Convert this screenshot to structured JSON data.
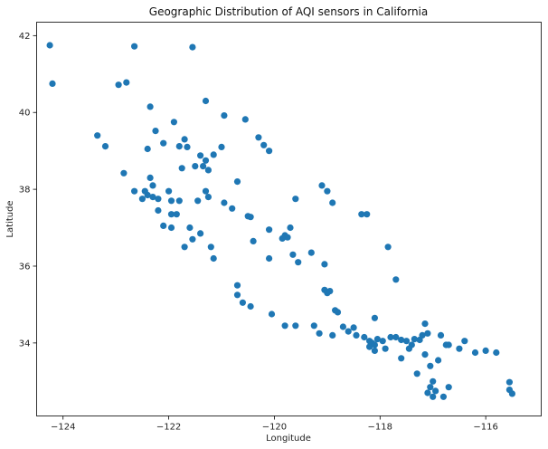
{
  "chart_data": {
    "type": "scatter",
    "title": "Geographic Distribution of AQI sensors in California",
    "xlabel": "Longitude",
    "ylabel": "Latitude",
    "xlim": [
      -124.5,
      -114.95
    ],
    "ylim": [
      32.1,
      42.35
    ],
    "xticks": [
      -124,
      -122,
      -120,
      -118,
      -116
    ],
    "yticks": [
      34,
      36,
      38,
      40,
      42
    ],
    "grid": false,
    "point_color": "#1f77b4",
    "points": [
      [
        -124.25,
        41.75
      ],
      [
        -124.2,
        40.75
      ],
      [
        -122.65,
        41.72
      ],
      [
        -121.55,
        41.7
      ],
      [
        -122.95,
        40.72
      ],
      [
        -122.8,
        40.78
      ],
      [
        -121.3,
        40.3
      ],
      [
        -122.35,
        40.15
      ],
      [
        -120.95,
        39.92
      ],
      [
        -120.55,
        39.82
      ],
      [
        -122.25,
        39.52
      ],
      [
        -121.9,
        39.75
      ],
      [
        -123.35,
        39.4
      ],
      [
        -123.2,
        39.12
      ],
      [
        -121.8,
        39.12
      ],
      [
        -122.1,
        39.2
      ],
      [
        -121.7,
        39.3
      ],
      [
        -122.4,
        39.05
      ],
      [
        -121.65,
        39.1
      ],
      [
        -121.4,
        38.88
      ],
      [
        -121.3,
        38.75
      ],
      [
        -121.15,
        38.9
      ],
      [
        -121.0,
        39.1
      ],
      [
        -120.3,
        39.35
      ],
      [
        -120.2,
        39.15
      ],
      [
        -120.1,
        39.0
      ],
      [
        -122.85,
        38.42
      ],
      [
        -122.35,
        38.3
      ],
      [
        -121.75,
        38.55
      ],
      [
        -121.5,
        38.6
      ],
      [
        -121.35,
        38.6
      ],
      [
        -121.25,
        38.5
      ],
      [
        -120.7,
        38.2
      ],
      [
        -122.3,
        38.1
      ],
      [
        -122.65,
        37.95
      ],
      [
        -122.45,
        37.95
      ],
      [
        -122.4,
        37.85
      ],
      [
        -122.3,
        37.8
      ],
      [
        -122.2,
        37.75
      ],
      [
        -122.5,
        37.75
      ],
      [
        -122.0,
        37.95
      ],
      [
        -121.95,
        37.7
      ],
      [
        -121.8,
        37.7
      ],
      [
        -121.3,
        37.95
      ],
      [
        -121.25,
        37.8
      ],
      [
        -121.45,
        37.7
      ],
      [
        -120.95,
        37.65
      ],
      [
        -120.8,
        37.5
      ],
      [
        -122.2,
        37.45
      ],
      [
        -121.95,
        37.35
      ],
      [
        -121.85,
        37.35
      ],
      [
        -122.1,
        37.05
      ],
      [
        -121.95,
        37.0
      ],
      [
        -121.6,
        37.0
      ],
      [
        -121.4,
        36.85
      ],
      [
        -121.7,
        36.5
      ],
      [
        -121.55,
        36.7
      ],
      [
        -121.2,
        36.5
      ],
      [
        -121.15,
        36.2
      ],
      [
        -120.5,
        37.3
      ],
      [
        -120.45,
        37.28
      ],
      [
        -120.1,
        36.95
      ],
      [
        -119.7,
        37.0
      ],
      [
        -119.8,
        36.8
      ],
      [
        -119.75,
        36.75
      ],
      [
        -119.85,
        36.72
      ],
      [
        -119.6,
        37.75
      ],
      [
        -120.4,
        36.65
      ],
      [
        -119.65,
        36.3
      ],
      [
        -119.55,
        36.1
      ],
      [
        -119.3,
        36.35
      ],
      [
        -119.1,
        38.1
      ],
      [
        -119.0,
        37.95
      ],
      [
        -118.9,
        37.65
      ],
      [
        -118.35,
        37.35
      ],
      [
        -118.25,
        37.35
      ],
      [
        -119.05,
        36.05
      ],
      [
        -120.1,
        36.2
      ],
      [
        -117.85,
        36.5
      ],
      [
        -117.7,
        35.65
      ],
      [
        -120.7,
        35.5
      ],
      [
        -120.7,
        35.25
      ],
      [
        -120.6,
        35.05
      ],
      [
        -120.45,
        34.95
      ],
      [
        -120.05,
        34.75
      ],
      [
        -119.8,
        34.45
      ],
      [
        -119.6,
        34.45
      ],
      [
        -119.05,
        35.38
      ],
      [
        -118.95,
        35.35
      ],
      [
        -119.0,
        35.3
      ],
      [
        -119.25,
        34.45
      ],
      [
        -119.15,
        34.25
      ],
      [
        -118.85,
        34.85
      ],
      [
        -118.8,
        34.8
      ],
      [
        -118.7,
        34.42
      ],
      [
        -118.5,
        34.4
      ],
      [
        -118.9,
        34.2
      ],
      [
        -118.6,
        34.3
      ],
      [
        -118.45,
        34.2
      ],
      [
        -118.3,
        34.15
      ],
      [
        -118.2,
        34.05
      ],
      [
        -118.15,
        34.0
      ],
      [
        -118.05,
        34.1
      ],
      [
        -118.2,
        33.9
      ],
      [
        -118.1,
        33.95
      ],
      [
        -117.95,
        34.05
      ],
      [
        -117.9,
        33.85
      ],
      [
        -118.1,
        33.8
      ],
      [
        -118.1,
        34.65
      ],
      [
        -117.8,
        34.15
      ],
      [
        -117.7,
        34.15
      ],
      [
        -117.6,
        34.08
      ],
      [
        -117.5,
        34.05
      ],
      [
        -117.35,
        34.1
      ],
      [
        -117.25,
        34.08
      ],
      [
        -117.4,
        33.95
      ],
      [
        -117.2,
        34.2
      ],
      [
        -117.15,
        34.5
      ],
      [
        -117.1,
        34.25
      ],
      [
        -117.45,
        33.85
      ],
      [
        -117.6,
        33.6
      ],
      [
        -117.15,
        33.7
      ],
      [
        -116.85,
        34.2
      ],
      [
        -116.75,
        33.95
      ],
      [
        -116.7,
        33.95
      ],
      [
        -116.5,
        33.85
      ],
      [
        -116.4,
        34.05
      ],
      [
        -116.2,
        33.75
      ],
      [
        -116.0,
        33.8
      ],
      [
        -115.8,
        33.75
      ],
      [
        -117.3,
        33.2
      ],
      [
        -116.9,
        33.55
      ],
      [
        -117.05,
        33.4
      ],
      [
        -117.0,
        33.0
      ],
      [
        -117.05,
        32.85
      ],
      [
        -116.95,
        32.75
      ],
      [
        -117.1,
        32.7
      ],
      [
        -117.0,
        32.6
      ],
      [
        -116.8,
        32.6
      ],
      [
        -116.7,
        32.85
      ],
      [
        -115.55,
        32.98
      ],
      [
        -115.55,
        32.78
      ],
      [
        -115.5,
        32.68
      ]
    ]
  }
}
